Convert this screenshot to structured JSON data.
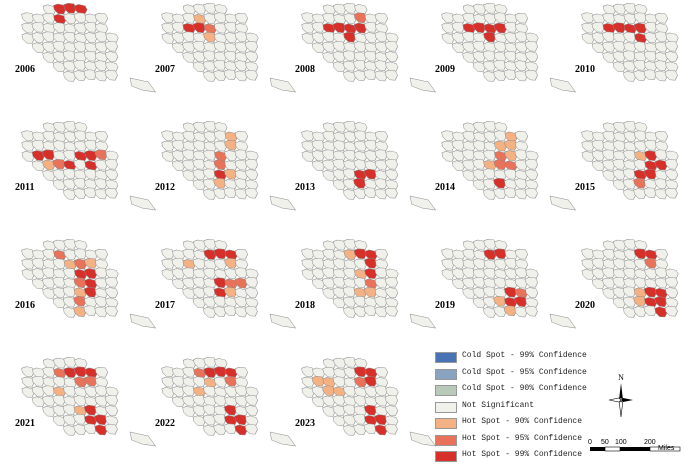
{
  "colors": {
    "not_significant": "#f1f1ec",
    "outline": "#8a8a8a",
    "hot90": "#f4b183",
    "hot95": "#e8735a",
    "hot99": "#d7302a",
    "cold99": "#4a73b5",
    "cold95": "#8aa3c0",
    "cold90": "#b9c9b9"
  },
  "maps": [
    {
      "year": "2006",
      "hot99": [
        "A4",
        "A5",
        "A6",
        "B4"
      ],
      "hot95": [],
      "hot90": []
    },
    {
      "year": "2007",
      "hot99": [
        "C3",
        "C4"
      ],
      "hot95": [
        "C5"
      ],
      "hot90": [
        "B4",
        "D5"
      ]
    },
    {
      "year": "2008",
      "hot99": [
        "C4",
        "C5",
        "C6",
        "D5",
        "C3"
      ],
      "hot95": [
        "B6"
      ],
      "hot90": []
    },
    {
      "year": "2009",
      "hot99": [
        "C4",
        "C5",
        "C6",
        "C3",
        "D5"
      ],
      "hot95": [],
      "hot90": []
    },
    {
      "year": "2010",
      "hot99": [
        "C4",
        "C5",
        "C6",
        "C3",
        "D6"
      ],
      "hot95": [],
      "hot90": []
    },
    {
      "year": "2011",
      "hot99": [
        "D2",
        "D3",
        "D6",
        "D7",
        "E7",
        "E5"
      ],
      "hot95": [
        "E4",
        "D8"
      ],
      "hot90": [
        "E3"
      ]
    },
    {
      "year": "2012",
      "hot99": [
        "F6"
      ],
      "hot95": [
        "E6",
        "D6"
      ],
      "hot90": [
        "C7",
        "F7",
        "G6",
        "B7"
      ]
    },
    {
      "year": "2013",
      "hot99": [
        "F6",
        "F7",
        "G6"
      ],
      "hot95": [],
      "hot90": []
    },
    {
      "year": "2014",
      "hot99": [
        "G6"
      ],
      "hot95": [
        "E6",
        "E7",
        "D6"
      ],
      "hot90": [
        "B7",
        "C6",
        "C7",
        "D7",
        "E5"
      ]
    },
    {
      "year": "2015",
      "hot99": [
        "D7",
        "E7",
        "E8",
        "F7",
        "F6"
      ],
      "hot95": [
        "G6"
      ],
      "hot90": [
        "D6"
      ]
    },
    {
      "year": "2016",
      "hot99": [
        "D6",
        "D7",
        "E7",
        "F7"
      ],
      "hot95": [
        "C6",
        "E6",
        "G6",
        "B4"
      ],
      "hot90": [
        "C5",
        "C7",
        "F6",
        "H6"
      ]
    },
    {
      "year": "2017",
      "hot99": [
        "B5",
        "B6",
        "B7",
        "E6",
        "F6"
      ],
      "hot95": [
        "E7",
        "E8"
      ],
      "hot90": [
        "C3",
        "C7",
        "F7"
      ]
    },
    {
      "year": "2018",
      "hot99": [
        "B6",
        "B7",
        "D7",
        "C7"
      ],
      "hot95": [
        "E7"
      ],
      "hot90": [
        "B5",
        "F6",
        "F7",
        "D6"
      ]
    },
    {
      "year": "2019",
      "hot99": [
        "B5",
        "B6",
        "F7",
        "G7",
        "G8"
      ],
      "hot95": [
        "F8"
      ],
      "hot90": [
        "H7",
        "G6"
      ]
    },
    {
      "year": "2020",
      "hot99": [
        "B6",
        "B7",
        "F7",
        "F8",
        "G7",
        "G8",
        "H8"
      ],
      "hot95": [
        "C7"
      ],
      "hot90": [
        "F6",
        "G6"
      ]
    },
    {
      "year": "2021",
      "hot99": [
        "B5",
        "B6",
        "B7",
        "F7",
        "G7",
        "G8",
        "H8"
      ],
      "hot95": [
        "B4",
        "C6",
        "C7"
      ],
      "hot90": [
        "D4",
        "F6"
      ]
    },
    {
      "year": "2022",
      "hot99": [
        "B5",
        "B6",
        "B7",
        "F7",
        "G7",
        "G8",
        "H8"
      ],
      "hot95": [
        "B4",
        "C7"
      ],
      "hot90": [
        "D4",
        "C5"
      ]
    },
    {
      "year": "2023",
      "hot99": [
        "B6",
        "B7",
        "C7",
        "F7",
        "G7",
        "G8",
        "H8"
      ],
      "hot95": [
        "C6"
      ],
      "hot90": [
        "C2",
        "C3",
        "D3",
        "D4"
      ]
    }
  ],
  "legend": [
    {
      "key": "cold99",
      "label": "Cold Spot - 99% Confidence",
      "color": "#4a73b5"
    },
    {
      "key": "cold95",
      "label": "Cold Spot - 95% Confidence",
      "color": "#8aa3c0"
    },
    {
      "key": "cold90",
      "label": "Cold Spot - 90% Confidence",
      "color": "#b9c9b9"
    },
    {
      "key": "ns",
      "label": "Not Significant",
      "color": "#f1f1ec"
    },
    {
      "key": "hot90",
      "label": "Hot Spot - 90% Confidence",
      "color": "#f4b183"
    },
    {
      "key": "hot95",
      "label": "Hot Spot - 95% Confidence",
      "color": "#e8735a"
    },
    {
      "key": "hot99",
      "label": "Hot Spot - 99% Confidence",
      "color": "#d7302a"
    }
  ],
  "north_arrow": {
    "label": "N"
  },
  "scale_bar": {
    "ticks": [
      "0",
      "50",
      "100",
      "200"
    ],
    "unit": "Miles"
  }
}
